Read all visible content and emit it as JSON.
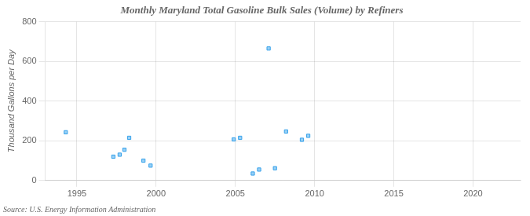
{
  "chart_data": {
    "type": "scatter",
    "title": "Monthly Maryland Total Gasoline Bulk Sales (Volume) by Refiners",
    "ylabel": "Thousand Gallons per Day",
    "annotation": "Source: U.S. Energy Information Administration",
    "x": [
      1994.3,
      1997.3,
      1997.7,
      1998.0,
      1998.3,
      1999.2,
      1999.65,
      2004.9,
      2005.3,
      2006.1,
      2006.5,
      2007.1,
      2007.5,
      2008.2,
      2009.2,
      2009.6
    ],
    "values": [
      243,
      120,
      130,
      155,
      215,
      100,
      75,
      207,
      215,
      35,
      55,
      665,
      62,
      247,
      205,
      225
    ],
    "marker": "square",
    "xlim": [
      1993,
      2023
    ],
    "xticks": [
      1995,
      2000,
      2005,
      2010,
      2015,
      2020
    ],
    "ylim": [
      0,
      800
    ],
    "yticks": [
      0,
      200,
      400,
      600,
      800
    ],
    "grid": true
  }
}
